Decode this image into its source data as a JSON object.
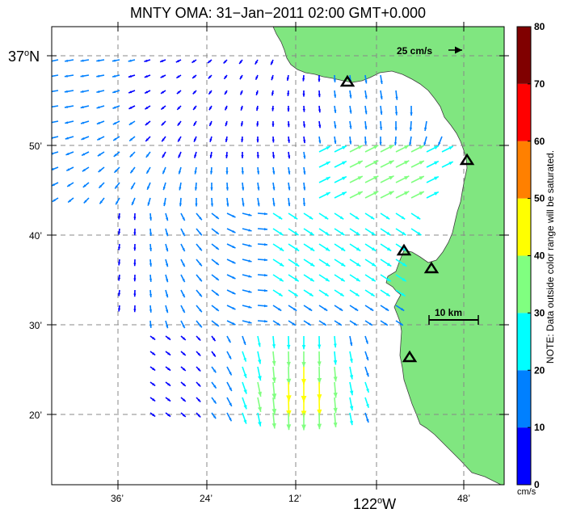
{
  "title": "MNTY OMA: 31−Jan−2011 02:00 GMT+0.000",
  "axes": {
    "lat_ticks": [
      {
        "label": "37",
        "deg": "o",
        "suffix": "N"
      },
      {
        "label": "50’"
      },
      {
        "label": "40’"
      },
      {
        "label": "30’"
      },
      {
        "label": "20’"
      }
    ],
    "lon_ticks": [
      {
        "label": "36’"
      },
      {
        "label": "24’"
      },
      {
        "label": "12’"
      },
      {
        "label": "122",
        "deg": "o",
        "suffix": "W"
      },
      {
        "label": "48’"
      }
    ]
  },
  "scale_vector": {
    "label": "25 cm/s"
  },
  "scale_bar": {
    "label": "10 km"
  },
  "colorbar": {
    "ticks": [
      "0",
      "10",
      "20",
      "30",
      "40",
      "50",
      "60",
      "70",
      "80"
    ],
    "colors": [
      "#0000ff",
      "#0080ff",
      "#00ffff",
      "#80ff80",
      "#ffff00",
      "#ff8000",
      "#ff0000",
      "#800000"
    ],
    "unit": "cm/s",
    "note": "NOTE: Data outside color range will be saturated."
  },
  "colors": {
    "land": "#80e680",
    "grid": "#888888",
    "frame": "#000000",
    "station_marker": "#000000"
  },
  "stations_count_visible": 5
}
